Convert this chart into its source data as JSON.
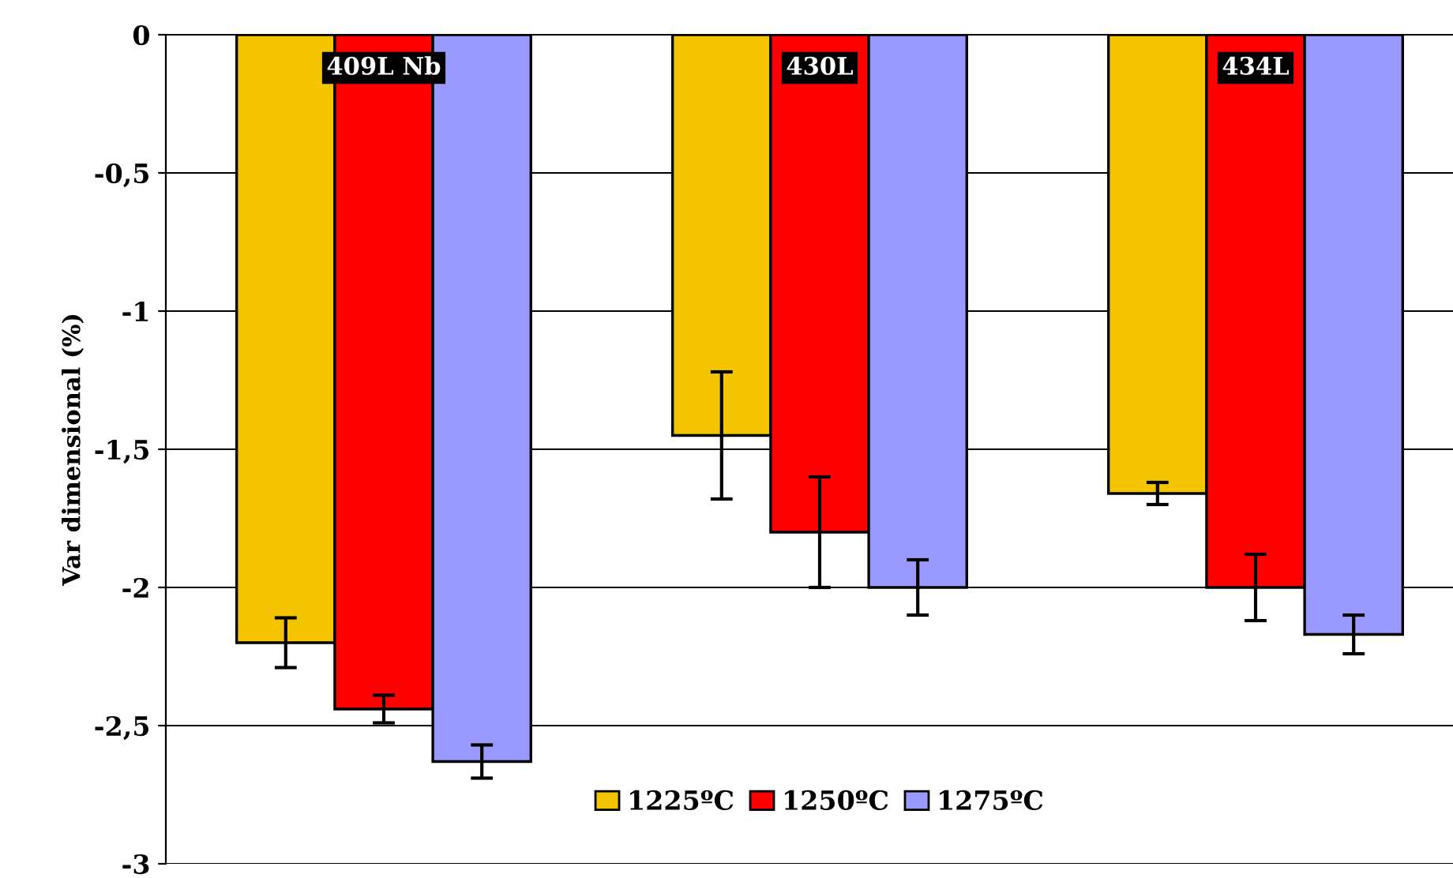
{
  "chart_data": {
    "type": "bar",
    "ylabel": "Var dimensional (%)",
    "categories": [
      "409L Nb",
      "430L",
      "434L"
    ],
    "series": [
      {
        "name": "1225ºC",
        "color": "#f5c400",
        "values": [
          -2.2,
          -1.45,
          -1.66
        ],
        "errors": [
          0.09,
          0.23,
          0.04
        ]
      },
      {
        "name": "1250ºC",
        "color": "#ff0000",
        "values": [
          -2.44,
          -1.8,
          -2.0
        ],
        "errors": [
          0.05,
          0.2,
          0.12
        ]
      },
      {
        "name": "1275ºC",
        "color": "#9999ff",
        "values": [
          -2.63,
          -2.0,
          -2.17
        ],
        "errors": [
          0.06,
          0.1,
          0.07
        ]
      }
    ],
    "ylim": [
      -3,
      0
    ],
    "yticks": [
      {
        "value": -3,
        "label": "-3"
      },
      {
        "value": -2.5,
        "label": "-2,5"
      },
      {
        "value": -2,
        "label": "-2"
      },
      {
        "value": -1.5,
        "label": "-1,5"
      },
      {
        "value": -1,
        "label": "-1"
      },
      {
        "value": -0.5,
        "label": "-0,5"
      },
      {
        "value": 0,
        "label": "0"
      }
    ],
    "grid": "y",
    "legend": "bottom"
  }
}
